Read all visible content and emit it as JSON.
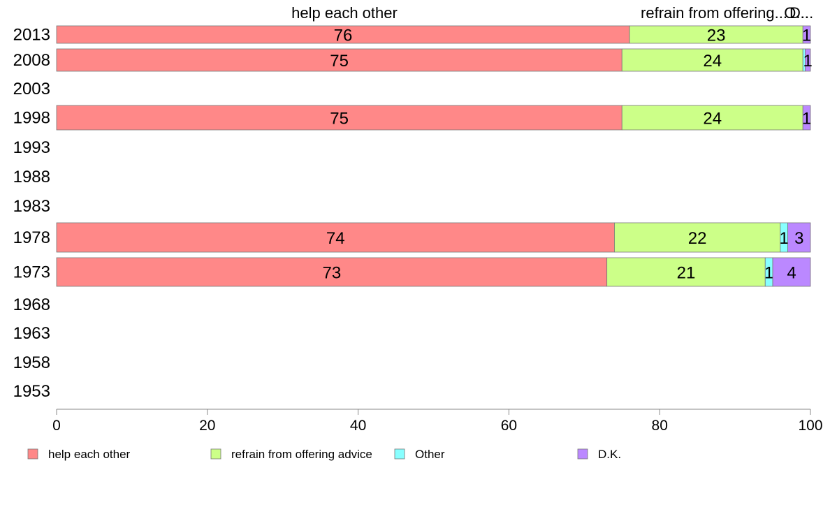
{
  "chart_data": {
    "type": "bar",
    "orientation": "horizontal",
    "stacked": true,
    "categories": [
      "2013",
      "2008",
      "2003",
      "1998",
      "1993",
      "1988",
      "1983",
      "1978",
      "1973",
      "1968",
      "1963",
      "1958",
      "1953"
    ],
    "series": [
      {
        "name": "help each other",
        "color": "#ff8888",
        "values": [
          76,
          75,
          null,
          75,
          null,
          null,
          null,
          74,
          73,
          null,
          null,
          null,
          null
        ]
      },
      {
        "name": "refrain from offering advice",
        "color": "#ccff88",
        "values": [
          23,
          24,
          null,
          24,
          null,
          null,
          null,
          22,
          21,
          null,
          null,
          null,
          null
        ]
      },
      {
        "name": "Other",
        "color": "#88ffff",
        "values": [
          0,
          0.3,
          null,
          0,
          null,
          null,
          null,
          1,
          1,
          null,
          null,
          null,
          null
        ]
      },
      {
        "name": "D.K.",
        "color": "#bb88ff",
        "values": [
          1,
          1,
          null,
          1,
          null,
          null,
          null,
          3,
          4,
          null,
          null,
          null,
          null
        ]
      }
    ],
    "data_labels": [
      [
        "76",
        "23",
        "",
        "1"
      ],
      [
        "75",
        "24",
        "",
        "1"
      ],
      null,
      [
        "75",
        "24",
        "",
        "1"
      ],
      null,
      null,
      null,
      [
        "74",
        "22",
        "1",
        "3"
      ],
      [
        "73",
        "21",
        "1",
        "4"
      ],
      null,
      null,
      null,
      null
    ],
    "top_labels": [
      "help each other",
      "refrain from offering...",
      "O...",
      "D..."
    ],
    "xlim": [
      0,
      100
    ],
    "xticks": [
      "0",
      "20",
      "40",
      "60",
      "80",
      "100"
    ],
    "legend_position": "bottom",
    "grid": false
  }
}
